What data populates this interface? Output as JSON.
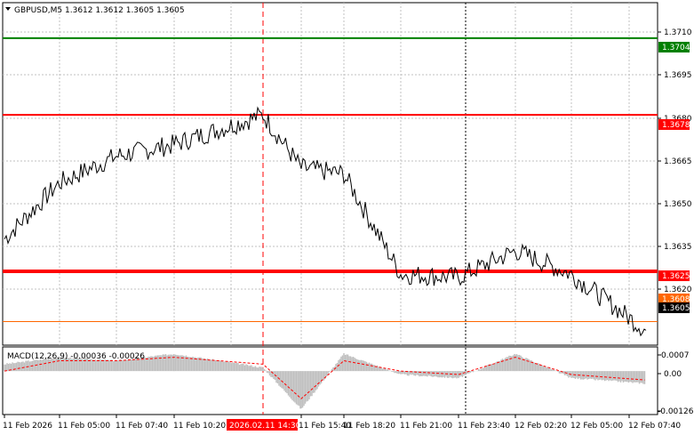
{
  "header": {
    "symbol_line": "GBPUSD,M5  1.3612 1.3612 1.3605 1.3605"
  },
  "price_axis": {
    "ticks": [
      "1.3710",
      "1.3695",
      "1.3680",
      "1.3665",
      "1.3650",
      "1.3635",
      "1.3620"
    ]
  },
  "levels": [
    {
      "value": 1.3704,
      "label": "1.3704",
      "color": "#008000",
      "weight": "normal"
    },
    {
      "value": 1.3678,
      "label": "1.3678",
      "color": "#ff0000",
      "weight": "normal"
    },
    {
      "value": 1.3625,
      "label": "1.3625",
      "color": "#ff0000",
      "weight": "bold"
    },
    {
      "value": 1.3608,
      "label": "1.3608",
      "color": "#ff6600",
      "weight": "thin"
    },
    {
      "value": 1.3605,
      "label": "1.3605",
      "color": "#000000",
      "weight": "tag"
    }
  ],
  "macd": {
    "title": "MACD(12,26,9) -0.00036 -0.00026",
    "ticks": [
      "0.0007",
      "0.00",
      "-0.00126"
    ],
    "histogram_color": "#c0c0c0",
    "signal_color": "#ff0000"
  },
  "time_axis": {
    "labels": [
      "11 Feb 2026",
      "11 Feb 05:00",
      "11 Feb 07:40",
      "11 Feb 10:20",
      "2026.02.11 14:30",
      "11 Feb 15:40",
      "11 Feb 18:20",
      "11 Feb 21:00",
      "11 Feb 23:40",
      "12 Feb 02:20",
      "12 Feb 05:00",
      "12 Feb 07:40"
    ],
    "highlight_label": "2026.02.11 14:30",
    "highlight_color": "#ff0000"
  },
  "colors": {
    "price_line": "#000000",
    "session_marker_red": "#ff0000",
    "session_marker_black": "#000000"
  },
  "chart_data": [
    {
      "type": "line",
      "title": "GBPUSD,M5",
      "x": [
        "11 Feb 2026",
        "11 Feb 05:00",
        "11 Feb 07:40",
        "11 Feb 10:20",
        "2026.02.11 14:30",
        "11 Feb 15:40",
        "11 Feb 18:20",
        "11 Feb 21:00",
        "11 Feb 23:40",
        "12 Feb 02:20",
        "12 Feb 05:00",
        "12 Feb 07:40"
      ],
      "series": [
        {
          "values": [
            1.3636,
            1.3655,
            1.3664,
            1.3668,
            1.3678,
            1.366,
            1.3658,
            1.3624,
            1.3623,
            1.3632,
            1.3624,
            1.3605
          ]
        }
      ],
      "ylim": [
        1.36,
        1.3716
      ],
      "hlines": [
        1.3704,
        1.3678,
        1.3625,
        1.3608
      ],
      "grid": true
    },
    {
      "type": "bar",
      "title": "MACD(12,26,9) -0.00036 -0.00026",
      "x": [
        "11 Feb 2026",
        "11 Feb 05:00",
        "11 Feb 07:40",
        "11 Feb 10:20",
        "2026.02.11 14:30",
        "11 Feb 15:40",
        "11 Feb 18:20",
        "11 Feb 21:00",
        "11 Feb 23:40",
        "12 Feb 02:20",
        "12 Feb 05:00",
        "12 Feb 07:40"
      ],
      "series": [
        {
          "values": [
            0.0002,
            0.0004,
            0.0003,
            0.0005,
            0.0001,
            -0.0011,
            0.0005,
            -0.0001,
            -0.0002,
            0.0005,
            -0.0002,
            -0.00036
          ]
        },
        {
          "values": [
            0.0,
            0.0003,
            0.0003,
            0.0004,
            0.0002,
            -0.0008,
            0.0003,
            0.0,
            -0.0001,
            0.0004,
            -0.0001,
            -0.00026
          ]
        }
      ],
      "ylim": [
        -0.00126,
        0.0007
      ]
    }
  ]
}
